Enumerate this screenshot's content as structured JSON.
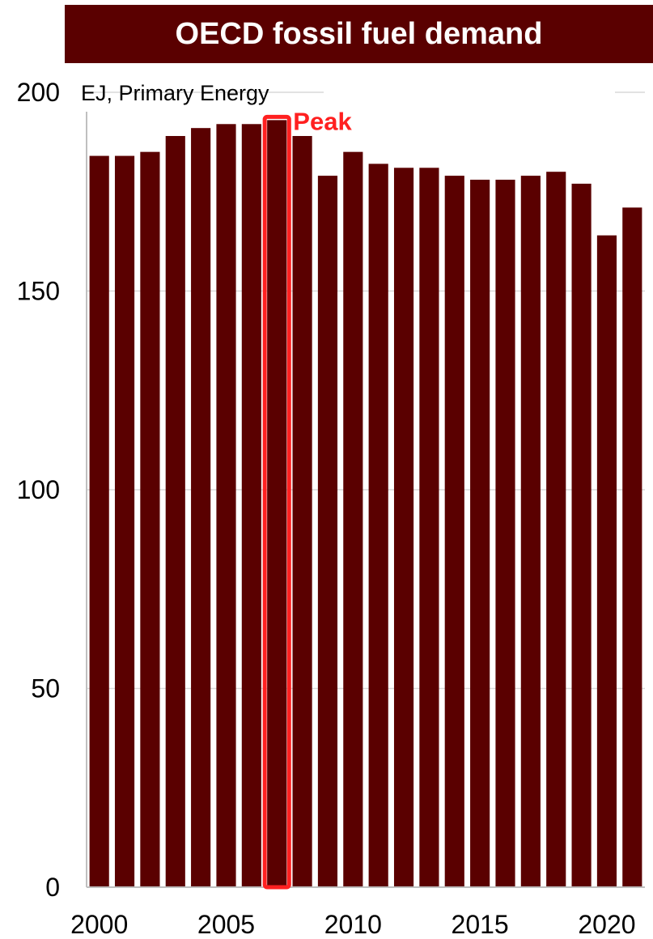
{
  "chart_data": {
    "type": "bar",
    "title": "OECD fossil fuel demand",
    "ylabel": "EJ, Primary Energy",
    "xlabel": "",
    "ylim": [
      0,
      200
    ],
    "yticks": [
      0,
      50,
      100,
      150,
      200
    ],
    "xticks": [
      "2000",
      "2005",
      "2010",
      "2015",
      "2020"
    ],
    "grid": true,
    "categories": [
      "2000",
      "2001",
      "2002",
      "2003",
      "2004",
      "2005",
      "2006",
      "2007",
      "2008",
      "2009",
      "2010",
      "2011",
      "2012",
      "2013",
      "2014",
      "2015",
      "2016",
      "2017",
      "2018",
      "2019",
      "2020",
      "2021"
    ],
    "values": [
      184,
      184,
      185,
      189,
      191,
      192,
      192,
      193,
      189,
      179,
      185,
      182,
      181,
      181,
      179,
      178,
      178,
      179,
      180,
      177,
      164,
      171
    ],
    "bar_color": "#5a0000",
    "annotation": {
      "text": "Peak",
      "category": "2007",
      "color": "#ff2020"
    }
  }
}
